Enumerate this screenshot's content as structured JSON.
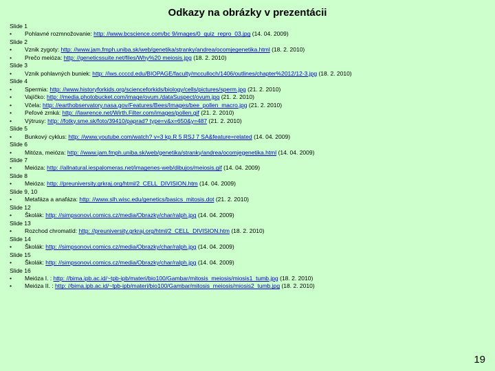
{
  "title": "Odkazy na obrázky v prezentácii",
  "page_number": "19",
  "lines": [
    {
      "t": "slide",
      "label": "Slide 1"
    },
    {
      "t": "item",
      "pre": "Pohlavné rozmnožovanie: ",
      "url": "http: //www.bcscience.com/bc 9/images/0_quiz_repro_03.jpg",
      "post": " (14. 04. 2009)"
    },
    {
      "t": "slide",
      "label": "Slide 2"
    },
    {
      "t": "item",
      "pre": "Vznik zygoty: ",
      "url": "http: //www.jam.fmph.uniba.sk/web/genetika/stranky/andrea/ocomjegenetika.html",
      "post": " (18. 2. 2010)"
    },
    {
      "t": "item",
      "pre": "Prečo meióza: ",
      "url": "http: //geneticssuite.net/files/Why%20 meiosis.jpg",
      "post": " (18. 2. 2010)"
    },
    {
      "t": "slide",
      "label": "Slide 3"
    },
    {
      "t": "item",
      "pre": "Vznik pohlavných buniek: ",
      "url": "http: //iws.ccccd.edu/BIOPAGE/faculty/mcculloch/1406/outlines/chapter%2012/12-3.jpg",
      "post": " (18. 2. 2010)"
    },
    {
      "t": "slide",
      "label": "Slide 4"
    },
    {
      "t": "item",
      "pre": "Spermia: ",
      "url": "http: //www.historyforkids.org/scienceforkids/biology/cells/pictures/sperm.jpg",
      "post": " (21. 2. 2010)"
    },
    {
      "t": "item",
      "pre": "Vajíčko: ",
      "url": "http: //media.photobucket.com/image/ovum./dataSuspect/ovum.jpg",
      "post": " (21. 2. 2010)"
    },
    {
      "t": "item",
      "pre": "Včela: ",
      "url": "http: //earthobservatory.nasa.gov/Features/Bees/Images/bee_pollen_macro.jpg",
      "post": " (21. 2. 2010)"
    },
    {
      "t": "item",
      "pre": "Peľové zrnká: ",
      "url": "http: //lawrence.net/Wirth.Filter.com/images/pollen.gif",
      "post": " (21. 2. 2010)"
    },
    {
      "t": "item",
      "pre": "Výtrusy: ",
      "url": "http: //fotky.sme.sk/foto/39410/paprad? type=v&x=650&y=487",
      "post": " (21. 2. 2010)"
    },
    {
      "t": "slide",
      "label": "Slide 5"
    },
    {
      "t": "item",
      "pre": "Bunkový cyklus: ",
      "url": "http: //www.youtube.com/watch? v=3 kp.R 5 RSJ 7 SA&feature=related",
      "post": " (14. 04. 2009)"
    },
    {
      "t": "slide",
      "label": "Slide 6"
    },
    {
      "t": "item",
      "pre": "Mitóza, meióza: ",
      "url": "http: //www.jam.fmph.uniba.sk/web/genetika/stranky/andrea/ocomjegenetika.html",
      "post": " (14. 04. 2009)"
    },
    {
      "t": "slide",
      "label": "Slide 7"
    },
    {
      "t": "item",
      "pre": "Meióza: ",
      "url": "http: //allnatural.iespalomeras.net/imagenes-web/dibujos/meiosis.gif",
      "post": " (14. 04. 2009)"
    },
    {
      "t": "slide",
      "label": "Slide 8"
    },
    {
      "t": "item",
      "pre": "Meióza: ",
      "url": "http: //preuniversity.grkraj.org/html/2_CELL_DIVISION.htm",
      "post": " (14. 04. 2009)"
    },
    {
      "t": "slide",
      "label": "Slide 9, 10"
    },
    {
      "t": "item",
      "pre": "Metafáza a anafáza: ",
      "url": "http: //www.slh.wisc.edu/genetics/basics_mitosis.dot",
      "post": " (21. 2. 2010)"
    },
    {
      "t": "slide",
      "label": "Slide 12"
    },
    {
      "t": "item",
      "pre": "Školák: ",
      "url": "http: //simpsonovi.comics.cz/media/Obrazky/char/ralph.jpg",
      "post": " (14. 04. 2009)"
    },
    {
      "t": "slide",
      "label": "Slide 13"
    },
    {
      "t": "item",
      "pre": "Rozchod chromatíd: ",
      "url": "http: //preuniversity.grkraj.org/html/2_CELL_DIVISION.htm",
      "post": " (18. 2. 2010)"
    },
    {
      "t": "slide",
      "label": "Slide 14"
    },
    {
      "t": "item",
      "pre": "Školák: ",
      "url": "http: //simpsonovi.comics.cz/media/Obrazky/char/ralph.jpg",
      "post": " (14. 04. 2009)"
    },
    {
      "t": "slide",
      "label": "Slide 15"
    },
    {
      "t": "item",
      "pre": "Školák: ",
      "url": "http: //simpsonovi.comics.cz/media/Obrazky/char/ralph.jpg",
      "post": " (14. 04. 2009)"
    },
    {
      "t": "slide",
      "label": "Slide 16"
    },
    {
      "t": "item",
      "pre": "Meióza I. : ",
      "url": "http: //bima.ipb.ac.id/~tpb-ipb/materi/bio100/Gambar/mitosis_meiosis/miosis1_tumb.jpg",
      "post": " (18. 2. 2010)"
    },
    {
      "t": "item",
      "pre": "Meióza II. : ",
      "url": "http: //bima.ipb.ac.id/~tpb-ipb/materi/bio100/Gambar/mitosis_meiosis/miosis2_tumb.jpg",
      "post": " (18. 2. 2010)"
    }
  ]
}
